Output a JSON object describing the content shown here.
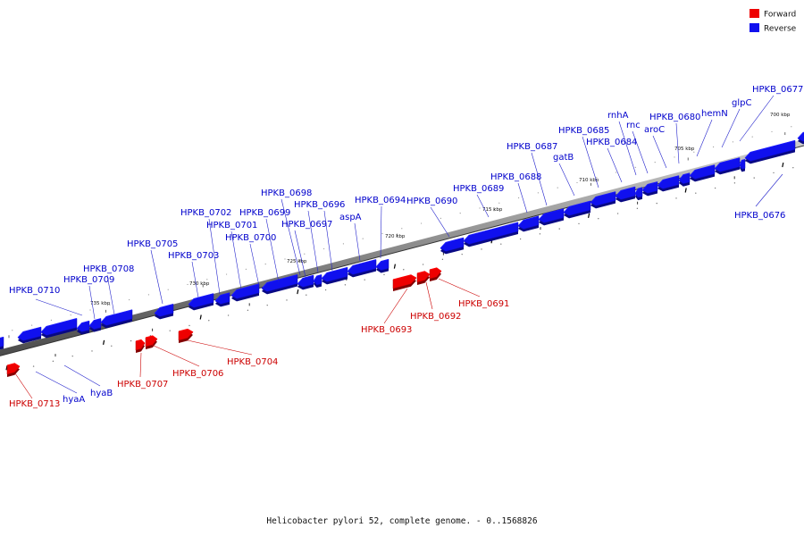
{
  "legend": [
    {
      "label": "Forward",
      "color": "#ee0000"
    },
    {
      "label": "Reverse",
      "color": "#1010ee"
    }
  ],
  "caption": "Helicobacter pylori 52, complete genome. - 0..1568826",
  "ruler_ticks": [
    "700 kbp",
    "705 kbp",
    "710 kbp",
    "715 kbp",
    "720 kbp",
    "725 kbp",
    "730 kbp",
    "735 kbp"
  ],
  "forward_genes": [
    "HPKB_0713",
    "HPKB_0707",
    "HPKB_0706",
    "HPKB_0704",
    "HPKB_0693",
    "HPKB_0692",
    "HPKB_0691"
  ],
  "reverse_genes": [
    "HPKB_0710",
    "HPKB_0709",
    "HPKB_0708",
    "HPKB_0705",
    "HPKB_0703",
    "HPKB_0702",
    "HPKB_0701",
    "HPKB_0700",
    "HPKB_0699",
    "HPKB_0698",
    "HPKB_0697",
    "HPKB_0696",
    "aspA",
    "HPKB_0694",
    "HPKB_0690",
    "HPKB_0689",
    "HPKB_0688",
    "HPKB_0687",
    "gatB",
    "HPKB_0685",
    "HPKB_0684",
    "rnhA",
    "rnc",
    "aroC",
    "HPKB_0680",
    "hemN",
    "glpC",
    "HPKB_0677",
    "HPKB_0676",
    "hyaA",
    "hyaB"
  ],
  "colors": {
    "forward": "#ee0000",
    "reverse": "#1010ee",
    "backbone": "#888888"
  }
}
